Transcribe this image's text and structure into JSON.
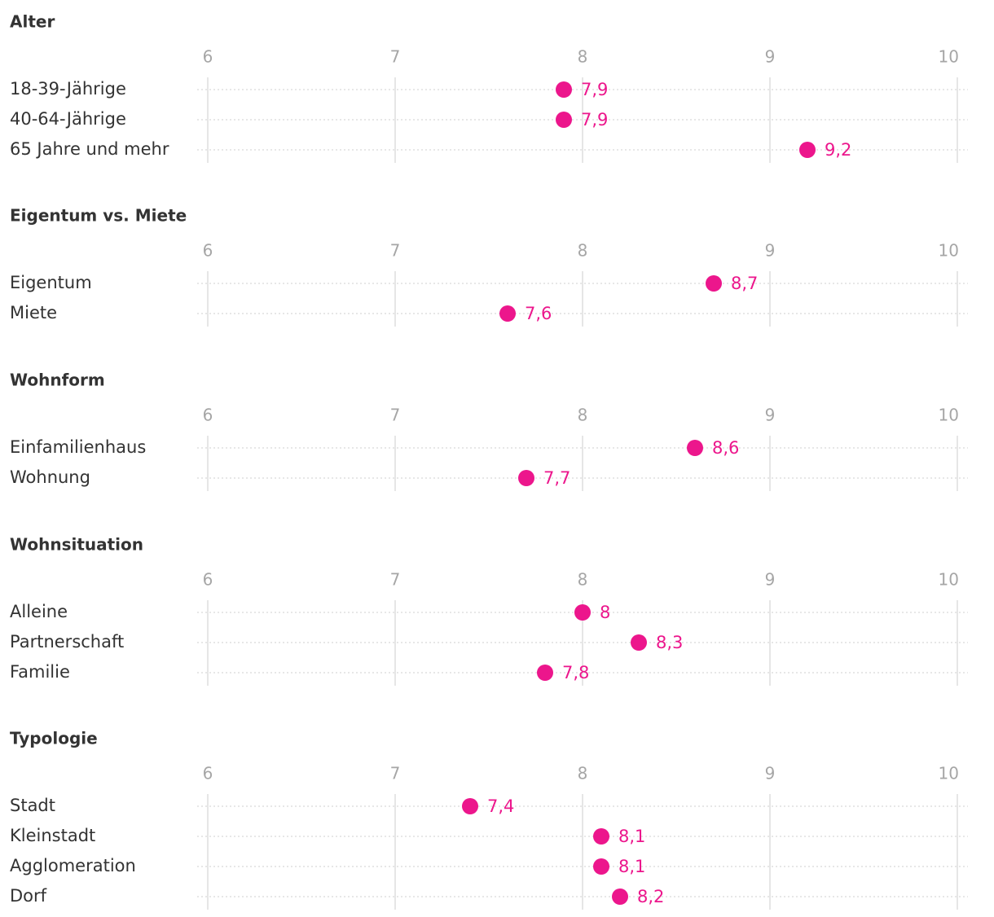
{
  "colors": {
    "dot": "#ec168c",
    "text": "#333333",
    "tick": "#a6a6a6",
    "grid": "#dddddd"
  },
  "chart_data": {
    "type": "scatter",
    "orientation": "horizontal-dot-plot",
    "xlim": [
      6,
      10
    ],
    "ticks": [
      "6",
      "7",
      "8",
      "9",
      "10"
    ],
    "groups": [
      {
        "title": "Alter",
        "rows": [
          {
            "label": "18-39-Jährige",
            "value": 7.9,
            "value_label": "7,9"
          },
          {
            "label": "40-64-Jährige",
            "value": 7.9,
            "value_label": "7,9"
          },
          {
            "label": "65 Jahre und mehr",
            "value": 9.2,
            "value_label": "9,2"
          }
        ]
      },
      {
        "title": "Eigentum vs. Miete",
        "rows": [
          {
            "label": "Eigentum",
            "value": 8.7,
            "value_label": "8,7"
          },
          {
            "label": "Miete",
            "value": 7.6,
            "value_label": "7,6"
          }
        ]
      },
      {
        "title": "Wohnform",
        "rows": [
          {
            "label": "Einfamilienhaus",
            "value": 8.6,
            "value_label": "8,6"
          },
          {
            "label": "Wohnung",
            "value": 7.7,
            "value_label": "7,7"
          }
        ]
      },
      {
        "title": "Wohnsituation",
        "rows": [
          {
            "label": "Alleine",
            "value": 8.0,
            "value_label": "8"
          },
          {
            "label": "Partnerschaft",
            "value": 8.3,
            "value_label": "8,3"
          },
          {
            "label": "Familie",
            "value": 7.8,
            "value_label": "7,8"
          }
        ]
      },
      {
        "title": "Typologie",
        "rows": [
          {
            "label": "Stadt",
            "value": 7.4,
            "value_label": "7,4"
          },
          {
            "label": "Kleinstadt",
            "value": 8.1,
            "value_label": "8,1"
          },
          {
            "label": "Agglomeration",
            "value": 8.1,
            "value_label": "8,1"
          },
          {
            "label": "Dorf",
            "value": 8.2,
            "value_label": "8,2"
          }
        ]
      }
    ]
  }
}
